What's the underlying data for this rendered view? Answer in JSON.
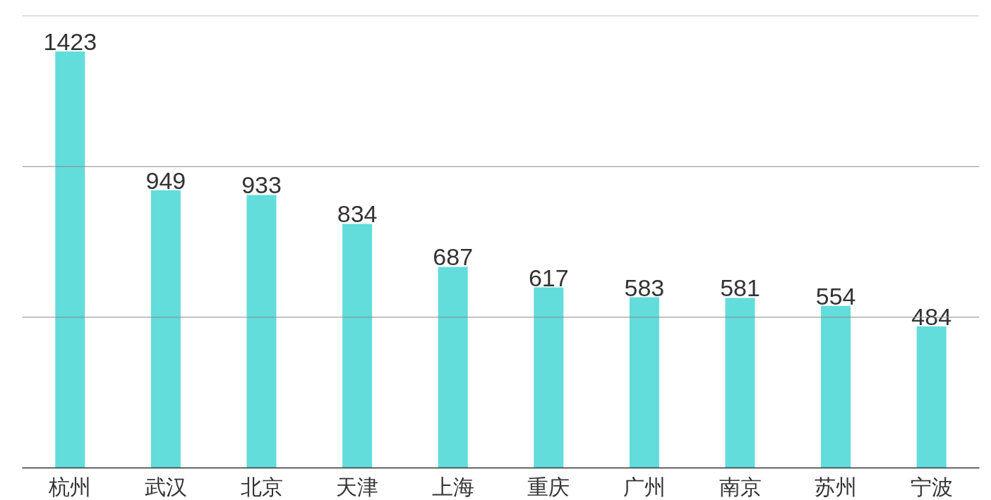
{
  "chart_data": {
    "type": "bar",
    "categories": [
      "杭州",
      "武汉",
      "北京",
      "天津",
      "上海",
      "重庆",
      "广州",
      "南京",
      "苏州",
      "宁波"
    ],
    "values": [
      1423,
      949,
      933,
      834,
      687,
      617,
      583,
      581,
      554,
      484
    ],
    "color": "#63dcdc",
    "data_labels": true,
    "ylim": [
      0,
      1545
    ],
    "yticks": [
      {
        "value": 0,
        "label": null
      },
      {
        "value": 515,
        "label": null
      },
      {
        "value": 1030,
        "label": null
      },
      {
        "value": 1545,
        "label": null
      }
    ],
    "grid": "y",
    "tick_labels": "x"
  }
}
